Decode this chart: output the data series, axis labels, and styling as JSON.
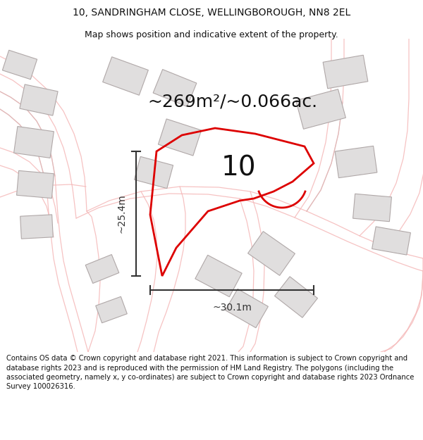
{
  "title_line1": "10, SANDRINGHAM CLOSE, WELLINGBOROUGH, NN8 2EL",
  "title_line2": "Map shows position and indicative extent of the property.",
  "area_text": "~269m²/~0.066ac.",
  "label_number": "10",
  "dim_width": "~30.1m",
  "dim_height": "~25.4m",
  "footer": "Contains OS data © Crown copyright and database right 2021. This information is subject to Crown copyright and database rights 2023 and is reproduced with the permission of HM Land Registry. The polygons (including the associated geometry, namely x, y co-ordinates) are subject to Crown copyright and database rights 2023 Ordnance Survey 100026316.",
  "bg_color": "#ffffff",
  "road_color": "#f5b8b8",
  "road_color2": "#d0b0b0",
  "plot_color": "#dd0000",
  "building_fill": "#e0dede",
  "building_edge": "#b0a8a8",
  "dim_color": "#444444",
  "title_fs": 10.0,
  "subtitle_fs": 9.0,
  "area_fs": 18,
  "num_fs": 28,
  "footer_fs": 7.2
}
